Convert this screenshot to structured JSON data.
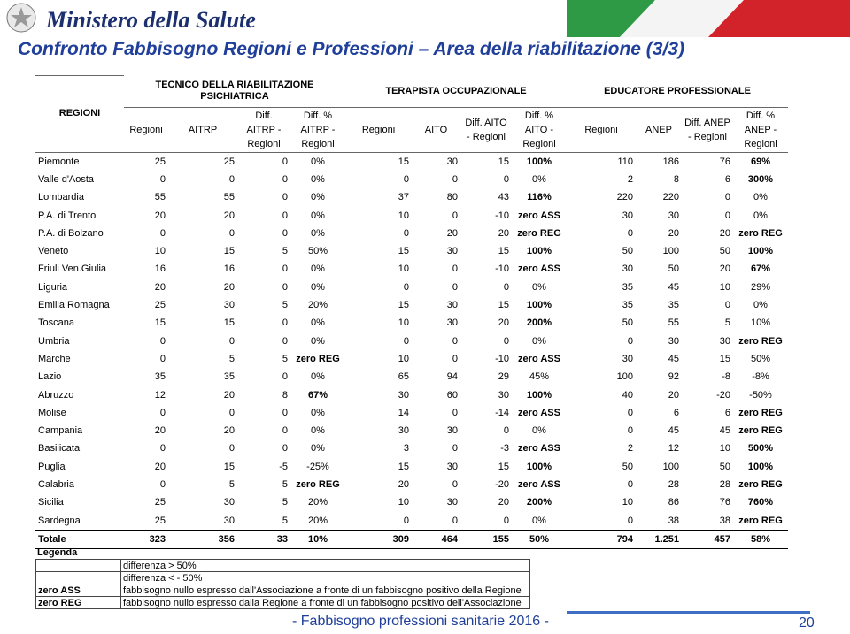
{
  "header": {
    "logo_text": "Ministero della Salute",
    "title": "Confronto Fabbisogno Regioni e Professioni – Area della riabilitazione (3/3)"
  },
  "table": {
    "first_column": "REGIONI",
    "groups": [
      "TECNICO DELLA RIABILITAZIONE PSICHIATRICA",
      "TERAPISTA OCCUPAZIONALE",
      "EDUCATORE PROFESSIONALE"
    ],
    "columns": [
      [
        "Regioni",
        "AITRP",
        "Diff. AITRP - Regioni",
        "Diff. % AITRP - Regioni"
      ],
      [
        "Regioni",
        "AITO",
        "Diff. AITO - Regioni",
        "Diff. % AITO - Regioni"
      ],
      [
        "Regioni",
        "ANEP",
        "Diff. ANEP - Regioni",
        "Diff. % ANEP - Regioni"
      ]
    ],
    "rows": [
      [
        "Piemonte",
        "25",
        "25",
        "0",
        "0%",
        "15",
        "30",
        "15",
        "100%",
        "110",
        "186",
        "76",
        "69%"
      ],
      [
        "Valle d'Aosta",
        "0",
        "0",
        "0",
        "0%",
        "0",
        "0",
        "0",
        "0%",
        "2",
        "8",
        "6",
        "300%"
      ],
      [
        "Lombardia",
        "55",
        "55",
        "0",
        "0%",
        "37",
        "80",
        "43",
        "116%",
        "220",
        "220",
        "0",
        "0%"
      ],
      [
        "P.A. di Trento",
        "20",
        "20",
        "0",
        "0%",
        "10",
        "0",
        "-10",
        "zero ASS",
        "30",
        "30",
        "0",
        "0%"
      ],
      [
        "P.A. di Bolzano",
        "0",
        "0",
        "0",
        "0%",
        "0",
        "20",
        "20",
        "zero REG",
        "0",
        "20",
        "20",
        "zero REG"
      ],
      [
        "Veneto",
        "10",
        "15",
        "5",
        "50%",
        "15",
        "30",
        "15",
        "100%",
        "50",
        "100",
        "50",
        "100%"
      ],
      [
        "Friuli Ven.Giulia",
        "16",
        "16",
        "0",
        "0%",
        "10",
        "0",
        "-10",
        "zero ASS",
        "30",
        "50",
        "20",
        "67%"
      ],
      [
        "Liguria",
        "20",
        "20",
        "0",
        "0%",
        "0",
        "0",
        "0",
        "0%",
        "35",
        "45",
        "10",
        "29%"
      ],
      [
        "Emilia Romagna",
        "25",
        "30",
        "5",
        "20%",
        "15",
        "30",
        "15",
        "100%",
        "35",
        "35",
        "0",
        "0%"
      ],
      [
        "Toscana",
        "15",
        "15",
        "0",
        "0%",
        "10",
        "30",
        "20",
        "200%",
        "50",
        "55",
        "5",
        "10%"
      ],
      [
        "Umbria",
        "0",
        "0",
        "0",
        "0%",
        "0",
        "0",
        "0",
        "0%",
        "0",
        "30",
        "30",
        "zero REG"
      ],
      [
        "Marche",
        "0",
        "5",
        "5",
        "zero REG",
        "10",
        "0",
        "-10",
        "zero ASS",
        "30",
        "45",
        "15",
        "50%"
      ],
      [
        "Lazio",
        "35",
        "35",
        "0",
        "0%",
        "65",
        "94",
        "29",
        "45%",
        "100",
        "92",
        "-8",
        "-8%"
      ],
      [
        "Abruzzo",
        "12",
        "20",
        "8",
        "67%",
        "30",
        "60",
        "30",
        "100%",
        "40",
        "20",
        "-20",
        "-50%"
      ],
      [
        "Molise",
        "0",
        "0",
        "0",
        "0%",
        "14",
        "0",
        "-14",
        "zero ASS",
        "0",
        "6",
        "6",
        "zero REG"
      ],
      [
        "Campania",
        "20",
        "20",
        "0",
        "0%",
        "30",
        "30",
        "0",
        "0%",
        "0",
        "45",
        "45",
        "zero REG"
      ],
      [
        "Basilicata",
        "0",
        "0",
        "0",
        "0%",
        "3",
        "0",
        "-3",
        "zero ASS",
        "2",
        "12",
        "10",
        "500%"
      ],
      [
        "Puglia",
        "20",
        "15",
        "-5",
        "-25%",
        "15",
        "30",
        "15",
        "100%",
        "50",
        "100",
        "50",
        "100%"
      ],
      [
        "Calabria",
        "0",
        "5",
        "5",
        "zero REG",
        "20",
        "0",
        "-20",
        "zero ASS",
        "0",
        "28",
        "28",
        "zero REG"
      ],
      [
        "Sicilia",
        "25",
        "30",
        "5",
        "20%",
        "10",
        "30",
        "20",
        "200%",
        "10",
        "86",
        "76",
        "760%"
      ],
      [
        "Sardegna",
        "25",
        "30",
        "5",
        "20%",
        "0",
        "0",
        "0",
        "0%",
        "0",
        "38",
        "38",
        "zero REG"
      ]
    ],
    "total": [
      "Totale",
      "323",
      "356",
      "33",
      "10%",
      "309",
      "464",
      "155",
      "50%",
      "794",
      "1.251",
      "457",
      "58%"
    ]
  },
  "legend": {
    "title": "Legenda",
    "items": [
      {
        "key": "",
        "text": "differenza > 50%"
      },
      {
        "key": "",
        "text": "differenza < - 50%"
      },
      {
        "key": "zero ASS",
        "text": "fabbisogno nullo espresso dall'Associazione a fronte di un fabbisogno positivo della Regione"
      },
      {
        "key": "zero REG",
        "text": "fabbisogno nullo espresso dalla Regione a fronte di un fabbisogno positivo dell'Associazione"
      }
    ]
  },
  "footer": {
    "text": "- Fabbisogno professioni sanitarie 2016 -",
    "page": "20"
  }
}
